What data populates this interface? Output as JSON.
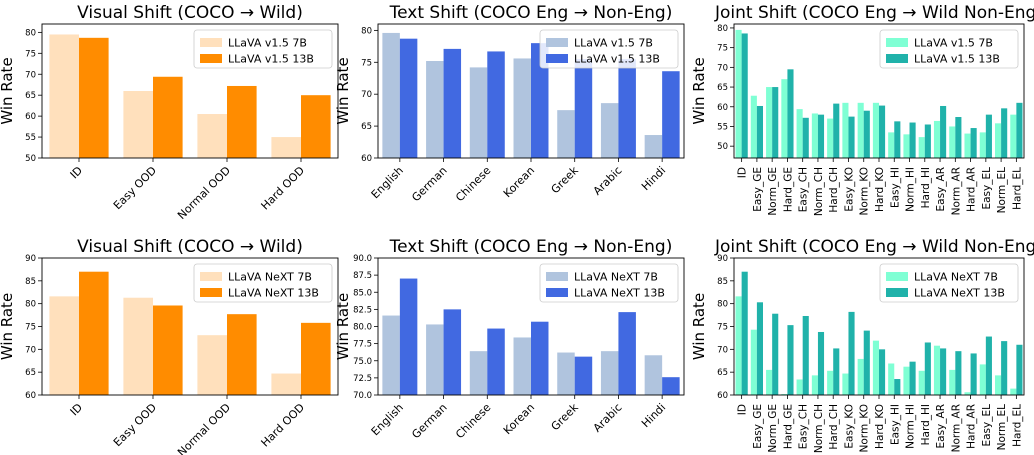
{
  "colors": {
    "visual_small": "#FFE0BC",
    "visual_large": "#FF8C00",
    "text_small": "#B0C4DE",
    "text_large": "#4169E1",
    "joint_small": "#7FFFD4",
    "joint_large": "#20B2AA"
  },
  "chart_data": [
    {
      "type": "bar",
      "title": "Visual Shift (COCO → Wild)",
      "ylabel": "Win Rate",
      "categories": [
        "ID",
        "Easy OOD",
        "Normal OOD",
        "Hard OOD"
      ],
      "ylim": [
        50,
        82
      ],
      "yticks": [
        50,
        55,
        60,
        65,
        70,
        75,
        80
      ],
      "legend_position": "top-right",
      "series": [
        {
          "name": "LLaVA v1.5 7B",
          "values": [
            79.5,
            66.0,
            60.5,
            55.0
          ],
          "color_key": "visual_small"
        },
        {
          "name": "LLaVA v1.5 13B",
          "values": [
            78.7,
            69.4,
            67.2,
            65.0
          ],
          "color_key": "visual_large"
        }
      ]
    },
    {
      "type": "bar",
      "title": "Text Shift (COCO Eng → Non-Eng)",
      "ylabel": "Win Rate",
      "categories": [
        "English",
        "German",
        "Chinese",
        "Korean",
        "Greek",
        "Arabic",
        "Hindi"
      ],
      "ylim": [
        60,
        81
      ],
      "yticks": [
        60,
        65,
        70,
        75,
        80
      ],
      "legend_position": "top-right",
      "series": [
        {
          "name": "LLaVA v1.5 7B",
          "values": [
            79.6,
            75.2,
            74.2,
            75.6,
            67.5,
            68.6,
            63.6
          ],
          "color_key": "text_small"
        },
        {
          "name": "LLaVA v1.5 13B",
          "values": [
            78.7,
            77.1,
            76.7,
            78.0,
            75.5,
            75.5,
            73.6
          ],
          "color_key": "text_large"
        }
      ]
    },
    {
      "type": "bar",
      "title": "Joint Shift (COCO Eng → Wild Non-Eng)",
      "ylabel": "Win Rate",
      "categories": [
        "ID",
        "Easy_GE",
        "Norm_GE",
        "Hard_GE",
        "Easy_CH",
        "Norm_CH",
        "Hard_CH",
        "Easy_KO",
        "Norm_KO",
        "Hard_KO",
        "Easy_HI",
        "Norm_HI",
        "Hard_HI",
        "Easy_AR",
        "Norm_AR",
        "Hard_AR",
        "Easy_EL",
        "Norm_EL",
        "Hard_EL"
      ],
      "ylim": [
        47,
        81
      ],
      "yticks": [
        50,
        55,
        60,
        65,
        70,
        75,
        80
      ],
      "legend_position": "top-right",
      "series": [
        {
          "name": "LLaVA v1.5 7B",
          "values": [
            79.5,
            62.8,
            65.0,
            67.0,
            59.4,
            58.3,
            57.0,
            61.0,
            61.0,
            61.0,
            53.5,
            53.0,
            52.3,
            56.4,
            55.0,
            53.2,
            53.5,
            55.8,
            58.0
          ],
          "color_key": "joint_small"
        },
        {
          "name": "LLaVA v1.5 13B",
          "values": [
            78.6,
            60.2,
            65.0,
            69.5,
            57.2,
            58.0,
            60.8,
            57.5,
            59.0,
            60.3,
            56.3,
            56.0,
            55.5,
            60.2,
            57.4,
            54.6,
            58.0,
            59.6,
            61.0
          ],
          "color_key": "joint_large"
        }
      ]
    },
    {
      "type": "bar",
      "title": "Visual Shift (COCO → Wild)",
      "ylabel": "Win Rate",
      "categories": [
        "ID",
        "Easy OOD",
        "Normal OOD",
        "Hard OOD"
      ],
      "ylim": [
        60,
        90
      ],
      "yticks": [
        60,
        65,
        70,
        75,
        80,
        85,
        90
      ],
      "legend_position": "top-right",
      "series": [
        {
          "name": "LLaVA NeXT 7B",
          "values": [
            81.6,
            81.3,
            73.1,
            64.7
          ],
          "color_key": "visual_small"
        },
        {
          "name": "LLaVA NeXT 13B",
          "values": [
            87.0,
            79.6,
            77.7,
            75.8
          ],
          "color_key": "visual_large"
        }
      ]
    },
    {
      "type": "bar",
      "title": "Text Shift (COCO Eng → Non-Eng)",
      "ylabel": "Win Rate",
      "categories": [
        "English",
        "German",
        "Chinese",
        "Korean",
        "Greek",
        "Arabic",
        "Hindi"
      ],
      "ylim": [
        70,
        90
      ],
      "yticks": [
        70.0,
        72.5,
        75.0,
        77.5,
        80.0,
        82.5,
        85.0,
        87.5,
        90.0
      ],
      "legend_position": "top-right",
      "series": [
        {
          "name": "LLaVA NeXT 7B",
          "values": [
            81.6,
            80.3,
            76.4,
            78.4,
            76.2,
            76.4,
            75.8
          ],
          "color_key": "text_small"
        },
        {
          "name": "LLaVA NeXT 13B",
          "values": [
            87.0,
            82.5,
            79.7,
            80.7,
            75.6,
            82.1,
            72.6
          ],
          "color_key": "text_large"
        }
      ]
    },
    {
      "type": "bar",
      "title": "Joint Shift (COCO Eng → Wild Non-Eng)",
      "ylabel": "Win Rate",
      "categories": [
        "ID",
        "Easy_GE",
        "Norm_GE",
        "Hard_GE",
        "Easy_CH",
        "Norm_CH",
        "Hard_CH",
        "Easy_KO",
        "Norm_KO",
        "Hard_KO",
        "Easy_HI",
        "Norm_HI",
        "Hard_HI",
        "Easy_AR",
        "Norm_AR",
        "Hard_AR",
        "Easy_EL",
        "Norm_EL",
        "Hard_EL"
      ],
      "ylim": [
        60,
        90
      ],
      "yticks": [
        60,
        65,
        70,
        75,
        80,
        85,
        90
      ],
      "legend_position": "top-right",
      "series": [
        {
          "name": "LLaVA NeXT 7B",
          "values": [
            81.6,
            74.3,
            65.5,
            60.2,
            63.4,
            64.3,
            65.3,
            64.7,
            67.9,
            71.9,
            66.9,
            66.2,
            65.3,
            70.8,
            65.5,
            60.6,
            66.7,
            64.3,
            61.4
          ],
          "color_key": "joint_small"
        },
        {
          "name": "LLaVA NeXT 13B",
          "values": [
            87.0,
            80.3,
            77.8,
            75.3,
            77.3,
            73.8,
            70.2,
            78.2,
            74.1,
            70.0,
            63.5,
            67.3,
            71.5,
            70.2,
            69.6,
            69.1,
            72.8,
            71.8,
            71.0
          ],
          "color_key": "joint_large"
        }
      ]
    }
  ]
}
